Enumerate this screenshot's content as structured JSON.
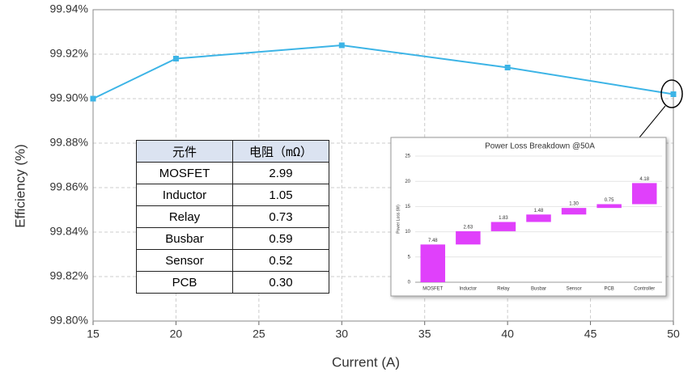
{
  "chart_data": [
    {
      "type": "line",
      "x": [
        15,
        20,
        30,
        40,
        50
      ],
      "series": [
        {
          "name": "Efficiency",
          "color": "#3cb4e6",
          "values": [
            99.9,
            99.918,
            99.924,
            99.914,
            99.902
          ]
        }
      ],
      "xlabel": "Current (A)",
      "ylabel": "Efficiency (%)",
      "xlim": [
        15,
        50
      ],
      "xticks": [
        15,
        20,
        25,
        30,
        35,
        40,
        45,
        50
      ],
      "ylim": [
        99.8,
        99.94
      ],
      "yticks": [
        {
          "value": 99.8,
          "label": "99.80%"
        },
        {
          "value": 99.82,
          "label": "99.82%"
        },
        {
          "value": 99.84,
          "label": "99.84%"
        },
        {
          "value": 99.86,
          "label": "99.86%"
        },
        {
          "value": 99.88,
          "label": "99.88%"
        },
        {
          "value": 99.9,
          "label": "99.90%"
        },
        {
          "value": 99.92,
          "label": "99.92%"
        },
        {
          "value": 99.94,
          "label": "99.94%"
        }
      ],
      "grid": true
    },
    {
      "type": "waterfall",
      "title": "Power Loss Breakdown @50A",
      "ylabel": "Power Loss (W)",
      "categories": [
        "MOSFET",
        "Inductor",
        "Relay",
        "Busbar",
        "Sensor",
        "PCB",
        "Controller"
      ],
      "values": [
        7.48,
        2.63,
        1.83,
        1.48,
        1.3,
        0.75,
        4.18
      ],
      "value_labels": [
        "7.48",
        "2.63",
        "1.83",
        "1.48",
        "1.30",
        "0.75",
        "4.18"
      ],
      "color": "#e040fb",
      "ylim": [
        0,
        25
      ],
      "yticks": [
        0,
        5,
        10,
        15,
        20,
        25
      ],
      "grid": true
    }
  ],
  "table": {
    "header": [
      "元件",
      "电阻（mΩ）"
    ],
    "rows": [
      [
        "MOSFET",
        "2.99"
      ],
      [
        "Inductor",
        "1.05"
      ],
      [
        "Relay",
        "0.73"
      ],
      [
        "Busbar",
        "0.59"
      ],
      [
        "Sensor",
        "0.52"
      ],
      [
        "PCB",
        "0.30"
      ]
    ]
  }
}
